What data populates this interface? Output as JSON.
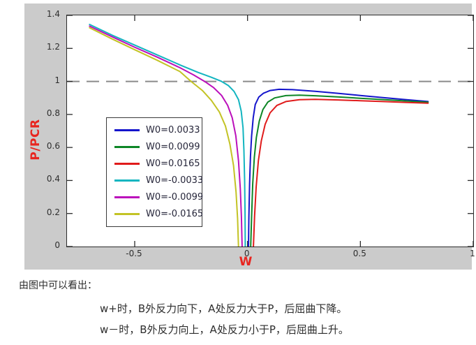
{
  "figure": {
    "background_color": "#cbcbcb",
    "axis_color": "#2b2b2b",
    "axis_label_color": "#e8251f",
    "tick_label_color": "#2e2e2e"
  },
  "chart_data": {
    "type": "line",
    "title": "",
    "xlabel": "W",
    "ylabel": "P/PCR",
    "xlim": [
      -0.8,
      1
    ],
    "ylim": [
      0,
      1.4
    ],
    "grid": false,
    "legend_position": "left-center-inside",
    "x_ticks": {
      "values": [
        -0.5,
        0,
        0.5,
        1
      ],
      "labels": [
        "-0.5",
        "0",
        "0.5",
        "1"
      ]
    },
    "y_ticks": {
      "values": [
        0,
        0.2,
        0.4,
        0.6,
        0.8,
        1,
        1.2,
        1.4
      ],
      "labels": [
        "0",
        "0.2",
        "0.4",
        "0.6",
        "0.8",
        "1",
        "1.2",
        "1.4"
      ]
    },
    "reference_line": {
      "y": 1.0,
      "style": "dashed",
      "color": "#8a8a8a"
    },
    "series": [
      {
        "name": "W0=0.0033",
        "color": "#1414cc",
        "points": [
          [
            0.004,
            0
          ],
          [
            0.006,
            0.18
          ],
          [
            0.009,
            0.38
          ],
          [
            0.013,
            0.55
          ],
          [
            0.018,
            0.67
          ],
          [
            0.025,
            0.78
          ],
          [
            0.034,
            0.86
          ],
          [
            0.05,
            0.905
          ],
          [
            0.07,
            0.928
          ],
          [
            0.1,
            0.945
          ],
          [
            0.14,
            0.952
          ],
          [
            0.2,
            0.95
          ],
          [
            0.3,
            0.94
          ],
          [
            0.4,
            0.928
          ],
          [
            0.5,
            0.915
          ],
          [
            0.6,
            0.902
          ],
          [
            0.7,
            0.89
          ],
          [
            0.8,
            0.878
          ]
        ]
      },
      {
        "name": "W0=0.0099",
        "color": "#0d8626",
        "points": [
          [
            0.014,
            0
          ],
          [
            0.018,
            0.18
          ],
          [
            0.023,
            0.38
          ],
          [
            0.03,
            0.54
          ],
          [
            0.039,
            0.66
          ],
          [
            0.052,
            0.76
          ],
          [
            0.068,
            0.83
          ],
          [
            0.09,
            0.875
          ],
          [
            0.12,
            0.9
          ],
          [
            0.17,
            0.914
          ],
          [
            0.23,
            0.917
          ],
          [
            0.3,
            0.913
          ],
          [
            0.4,
            0.906
          ],
          [
            0.5,
            0.898
          ],
          [
            0.6,
            0.89
          ],
          [
            0.7,
            0.882
          ],
          [
            0.8,
            0.874
          ]
        ]
      },
      {
        "name": "W0=0.0165",
        "color": "#e01b1b",
        "points": [
          [
            0.026,
            0
          ],
          [
            0.031,
            0.18
          ],
          [
            0.038,
            0.36
          ],
          [
            0.048,
            0.52
          ],
          [
            0.061,
            0.64
          ],
          [
            0.078,
            0.74
          ],
          [
            0.1,
            0.81
          ],
          [
            0.13,
            0.855
          ],
          [
            0.17,
            0.878
          ],
          [
            0.23,
            0.889
          ],
          [
            0.3,
            0.891
          ],
          [
            0.4,
            0.888
          ],
          [
            0.5,
            0.883
          ],
          [
            0.6,
            0.878
          ],
          [
            0.7,
            0.873
          ],
          [
            0.8,
            0.868
          ]
        ]
      },
      {
        "name": "W0=-0.0033",
        "color": "#13b5c0",
        "points": [
          [
            -0.7,
            1.345
          ],
          [
            -0.6,
            1.28
          ],
          [
            -0.5,
            1.22
          ],
          [
            -0.4,
            1.16
          ],
          [
            -0.3,
            1.1
          ],
          [
            -0.22,
            1.055
          ],
          [
            -0.16,
            1.025
          ],
          [
            -0.115,
            1.0
          ],
          [
            -0.085,
            0.975
          ],
          [
            -0.06,
            0.94
          ],
          [
            -0.04,
            0.89
          ],
          [
            -0.028,
            0.82
          ],
          [
            -0.02,
            0.72
          ],
          [
            -0.016,
            0.58
          ],
          [
            -0.013,
            0.4
          ],
          [
            -0.011,
            0.2
          ],
          [
            -0.01,
            0
          ]
        ]
      },
      {
        "name": "W0=-0.0099",
        "color": "#bb10bb",
        "points": [
          [
            -0.7,
            1.335
          ],
          [
            -0.6,
            1.27
          ],
          [
            -0.5,
            1.207
          ],
          [
            -0.4,
            1.147
          ],
          [
            -0.3,
            1.083
          ],
          [
            -0.24,
            1.04
          ],
          [
            -0.19,
            1.0
          ],
          [
            -0.15,
            0.962
          ],
          [
            -0.115,
            0.915
          ],
          [
            -0.088,
            0.855
          ],
          [
            -0.068,
            0.78
          ],
          [
            -0.052,
            0.67
          ],
          [
            -0.04,
            0.52
          ],
          [
            -0.032,
            0.35
          ],
          [
            -0.027,
            0.18
          ],
          [
            -0.024,
            0
          ]
        ]
      },
      {
        "name": "W0=-0.0165",
        "color": "#c3c325",
        "points": [
          [
            -0.7,
            1.325
          ],
          [
            -0.6,
            1.257
          ],
          [
            -0.5,
            1.192
          ],
          [
            -0.4,
            1.128
          ],
          [
            -0.3,
            1.06
          ],
          [
            -0.25,
            1.0
          ],
          [
            -0.2,
            0.945
          ],
          [
            -0.16,
            0.885
          ],
          [
            -0.125,
            0.815
          ],
          [
            -0.098,
            0.73
          ],
          [
            -0.078,
            0.62
          ],
          [
            -0.062,
            0.49
          ],
          [
            -0.051,
            0.33
          ],
          [
            -0.044,
            0.17
          ],
          [
            -0.04,
            0
          ]
        ]
      }
    ]
  },
  "captions": {
    "heading": "由图中可以看出：",
    "line1": "w+时，B外反力向下，A处反力大于P，后屈曲下降。",
    "line2": "w－时，B外反力向上，A处反力小于P，后屈曲上升。"
  }
}
